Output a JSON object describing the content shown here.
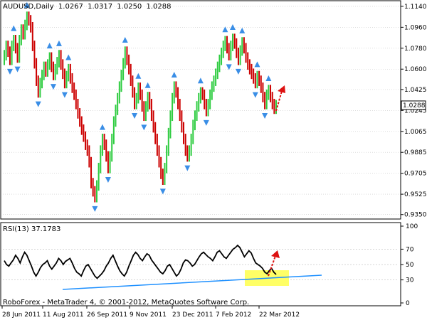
{
  "chart_data": [
    {
      "type": "candlestick",
      "header": {
        "symbol": "AUDUSD",
        "timeframe": "Daily",
        "open": "1.0267",
        "high": "1.0317",
        "low": "1.0250",
        "close": "1.0288"
      },
      "ylim": [
        0.933,
        1.117
      ],
      "y_ticks": [
        "1.1140",
        "1.0960",
        "1.0780",
        "1.0600",
        "1.0425",
        "1.0245",
        "1.0065",
        "0.9885",
        "0.9705",
        "0.9525",
        "0.9350"
      ],
      "current_price_label": "1.0288",
      "series_close": [
        1.072,
        1.08,
        1.075,
        1.068,
        1.08,
        1.085,
        1.078,
        1.07,
        1.085,
        1.094,
        1.09,
        1.098,
        1.105,
        1.102,
        1.096,
        1.08,
        1.065,
        1.05,
        1.04,
        1.048,
        1.055,
        1.062,
        1.058,
        1.064,
        1.07,
        1.062,
        1.055,
        1.06,
        1.066,
        1.072,
        1.064,
        1.056,
        1.048,
        1.054,
        1.06,
        1.052,
        1.044,
        1.038,
        1.03,
        1.022,
        1.015,
        1.008,
        1.002,
        0.995,
        0.99,
        0.98,
        0.962,
        0.955,
        0.95,
        0.96,
        0.975,
        0.99,
        1.0,
        0.995,
        0.985,
        0.975,
        0.985,
        1.0,
        1.015,
        1.025,
        1.035,
        1.045,
        1.055,
        1.065,
        1.075,
        1.068,
        1.06,
        1.05,
        1.04,
        1.03,
        1.035,
        1.044,
        1.038,
        1.028,
        1.02,
        1.028,
        1.036,
        1.03,
        1.02,
        1.01,
        1.0,
        0.99,
        0.98,
        0.97,
        0.965,
        0.975,
        0.99,
        1.005,
        1.02,
        1.035,
        1.045,
        1.04,
        1.03,
        1.02,
        1.01,
        1.0,
        0.99,
        0.985,
        0.99,
        1.0,
        1.012,
        1.02,
        1.028,
        1.035,
        1.04,
        1.038,
        1.03,
        1.024,
        1.03,
        1.038,
        1.045,
        1.05,
        1.056,
        1.062,
        1.068,
        1.074,
        1.08,
        1.084,
        1.078,
        1.072,
        1.08,
        1.086,
        1.082,
        1.074,
        1.068,
        1.076,
        1.083,
        1.078,
        1.07,
        1.064,
        1.06,
        1.056,
        1.052,
        1.048,
        1.054,
        1.05,
        1.044,
        1.036,
        1.03,
        1.038,
        1.042,
        1.036,
        1.03,
        1.026,
        1.029
      ]
    },
    {
      "type": "line",
      "title": "RSI(13) 37.1783",
      "ylim": [
        0,
        100
      ],
      "y_ticks": [
        "100",
        "70",
        "50",
        "30",
        "0"
      ],
      "levels": [
        70,
        50,
        30
      ],
      "series_rsi": [
        55,
        50,
        48,
        52,
        56,
        62,
        58,
        52,
        60,
        66,
        62,
        55,
        48,
        40,
        35,
        40,
        46,
        50,
        52,
        55,
        48,
        44,
        48,
        52,
        58,
        55,
        50,
        54,
        56,
        58,
        52,
        45,
        40,
        38,
        35,
        42,
        48,
        50,
        45,
        40,
        35,
        32,
        35,
        38,
        42,
        48,
        52,
        58,
        62,
        55,
        48,
        42,
        38,
        35,
        40,
        48,
        55,
        62,
        66,
        63,
        58,
        55,
        60,
        64,
        62,
        56,
        52,
        48,
        44,
        40,
        38,
        42,
        48,
        50,
        45,
        40,
        35,
        38,
        44,
        52,
        56,
        55,
        52,
        48,
        50,
        55,
        60,
        64,
        66,
        63,
        60,
        58,
        55,
        60,
        66,
        68,
        64,
        60,
        58,
        62,
        66,
        70,
        72,
        75,
        72,
        66,
        60,
        64,
        68,
        65,
        58,
        52,
        50,
        48,
        45,
        40,
        38,
        42,
        45,
        40,
        37
      ],
      "x_labels": [
        "28 Jun 2011",
        "11 Aug 2011",
        "26 Sep 2011",
        "9 Nov 2011",
        "23 Dec 2011",
        "7 Feb 2012",
        "22 Mar 2012"
      ]
    }
  ],
  "footer": {
    "copyright": "RoboForex - MetaTrader 4, © 2001-2012, MetaQuotes Software Corp."
  },
  "colors": {
    "bull": "#2ecc40",
    "bear": "#cc0000",
    "fractal": "#3a8ee6",
    "grid": "#c8c8c8",
    "highlight": "#ffff66",
    "trendline": "#1e90ff",
    "arrow": "#dd1111"
  }
}
